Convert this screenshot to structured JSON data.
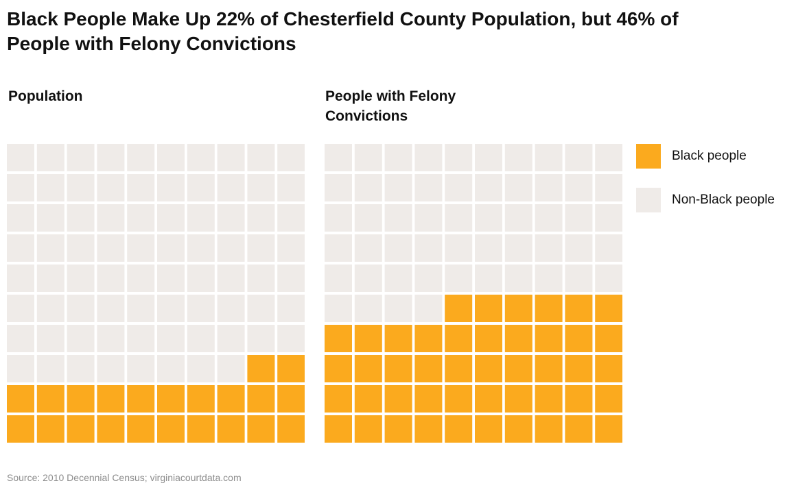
{
  "chart_data": {
    "type": "waffle",
    "title": "Black People Make Up 22% of Chesterfield County Population, but 46% of People with Felony Convictions",
    "source": "Source: 2010 Decennial Census; virginiacourtdata.com",
    "colors": {
      "black_people": "#FBAA1E",
      "non_black_people": "#EFEBE8"
    },
    "legend": [
      {
        "key": "black_people",
        "label": "Black people",
        "color": "#FBAA1E"
      },
      {
        "key": "non_black_people",
        "label": "Non-Black people",
        "color": "#EFEBE8"
      }
    ],
    "grid": {
      "rows": 10,
      "columns": 10,
      "fill_from": "bottom-right"
    },
    "panels": [
      {
        "key": "population",
        "title": "Population",
        "total_squares": 100,
        "black_people_percent": 22,
        "non_black_people_percent": 78
      },
      {
        "key": "felony",
        "title": "People with Felony Convictions",
        "total_squares": 100,
        "black_people_percent": 46,
        "non_black_people_percent": 54
      }
    ]
  }
}
